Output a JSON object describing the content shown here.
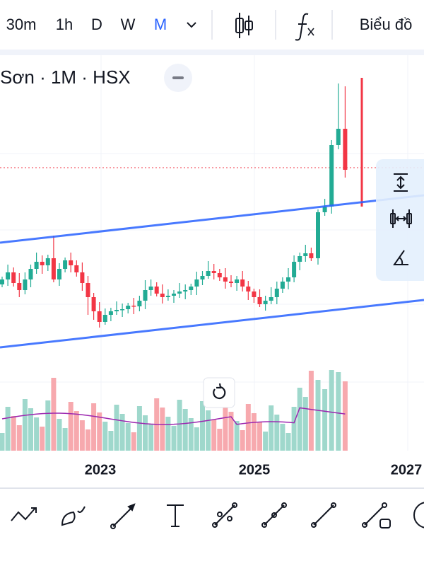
{
  "toolbar": {
    "intervals": [
      "30m",
      "1h",
      "D",
      "W",
      "M"
    ],
    "active_interval": "M",
    "chart_button": "Biểu đồ"
  },
  "legend": {
    "symbol": "Sơn · 1M · HSX"
  },
  "x_axis": {
    "labels": [
      "2023",
      "2025",
      "2027"
    ]
  }
}
